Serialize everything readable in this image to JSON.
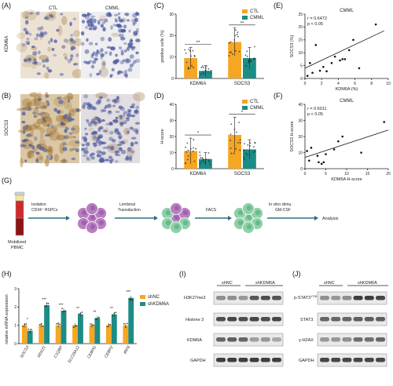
{
  "panels": {
    "A": "(A)",
    "B": "(B)",
    "C": "(C)",
    "D": "(D)",
    "E": "(E)",
    "F": "(F)",
    "G": "(G)",
    "H": "(H)",
    "I": "(I)",
    "J": "(J)"
  },
  "ihc": {
    "ctl": "CTL",
    "cmml": "CMML",
    "row_a": "KDM6A",
    "row_b": "SOCS3"
  },
  "colors": {
    "ctl": "#f5a623",
    "cmml": "#1c8c86",
    "arrow": "#2e6e7e",
    "purple": "#b87fc0",
    "green": "#8fd0a8"
  },
  "chart_data": [
    {
      "panel": "C",
      "type": "bar",
      "ylabel": "positive cells (%)",
      "ylim": [
        0,
        30
      ],
      "yticks": [
        "0",
        "10",
        "20",
        "30"
      ],
      "categories": [
        "KDM6A",
        "SOCS3"
      ],
      "series": [
        {
          "name": "CTL",
          "values": [
            9.5,
            17
          ],
          "errors": [
            5,
            6.5
          ]
        },
        {
          "name": "CMML",
          "values": [
            3.5,
            9.5
          ],
          "errors": [
            2.5,
            5
          ]
        }
      ],
      "significance": [
        "**",
        "**"
      ]
    },
    {
      "panel": "D",
      "type": "bar",
      "ylabel": "H-score",
      "ylim": [
        0,
        40
      ],
      "yticks": [
        "0",
        "10",
        "20",
        "30",
        "40"
      ],
      "categories": [
        "KDM6A",
        "SOCS3"
      ],
      "series": [
        {
          "name": "CTL",
          "values": [
            11,
            21
          ],
          "errors": [
            8,
            11
          ]
        },
        {
          "name": "CMML",
          "values": [
            6,
            12
          ],
          "errors": [
            4,
            6
          ]
        }
      ],
      "significance": [
        "*",
        "*"
      ]
    },
    {
      "panel": "E",
      "type": "scatter",
      "title": "CMML",
      "xlabel": "KDM6A (%)",
      "ylabel": "SOCS3 (%)",
      "xlim": [
        0,
        10
      ],
      "ylim": [
        0,
        25
      ],
      "xticks": [
        "0",
        "2",
        "4",
        "6",
        "8",
        "10"
      ],
      "yticks": [
        "0",
        "5",
        "10",
        "15",
        "20",
        "25"
      ],
      "annotation": [
        "r = 0.6472",
        "p < 0.05"
      ],
      "points": [
        [
          0.3,
          1
        ],
        [
          0.6,
          6
        ],
        [
          0.9,
          2.2
        ],
        [
          1.3,
          13
        ],
        [
          1.8,
          3
        ],
        [
          2.2,
          4.5
        ],
        [
          2.6,
          2.8
        ],
        [
          3.2,
          6
        ],
        [
          3.6,
          8.5
        ],
        [
          4.2,
          7
        ],
        [
          4.5,
          7.5
        ],
        [
          4.8,
          7.5
        ],
        [
          5.3,
          11
        ],
        [
          5.8,
          15
        ],
        [
          6.5,
          4
        ],
        [
          8.5,
          21
        ]
      ],
      "fit": [
        [
          0,
          4
        ],
        [
          9.5,
          18.5
        ]
      ]
    },
    {
      "panel": "F",
      "type": "scatter",
      "title": "CMML",
      "xlabel": "KDM6A H-score",
      "ylabel": "SOCS3 H-score",
      "xlim": [
        0,
        20
      ],
      "ylim": [
        0,
        40
      ],
      "xticks": [
        "0",
        "5",
        "10",
        "15",
        "20"
      ],
      "yticks": [
        "0",
        "10",
        "20",
        "30",
        "40"
      ],
      "annotation": [
        "r = 0.6011",
        "p < 0.05"
      ],
      "points": [
        [
          0.5,
          11
        ],
        [
          1,
          5
        ],
        [
          1.5,
          13
        ],
        [
          3,
          8
        ],
        [
          3.3,
          4
        ],
        [
          4,
          3
        ],
        [
          4.5,
          4
        ],
        [
          5,
          9
        ],
        [
          7,
          12
        ],
        [
          8,
          17
        ],
        [
          9,
          20
        ],
        [
          13.5,
          10
        ],
        [
          19,
          29
        ]
      ],
      "fit": [
        [
          0,
          7
        ],
        [
          20,
          24
        ]
      ]
    },
    {
      "panel": "H",
      "type": "bar",
      "ylabel": "relative mRNA expression",
      "ylim": [
        0,
        3
      ],
      "yticks": [
        "0",
        "1",
        "2",
        "3"
      ],
      "categories": [
        "SOCS3",
        "DDX21",
        "C1QBP",
        "SLC25A12",
        "CEBPG",
        "CEBPZ",
        "IRF8"
      ],
      "series": [
        {
          "name": "shNC",
          "values": [
            1,
            1,
            1,
            1,
            1,
            1,
            1
          ]
        },
        {
          "name": "shKDM6A",
          "values": [
            0.7,
            2.1,
            1.8,
            1.6,
            1.4,
            1.6,
            2.5
          ]
        }
      ],
      "significance": [
        "*",
        "***",
        "***",
        "**",
        "**",
        "**",
        "***"
      ]
    }
  ],
  "workflow": {
    "isolation": "Isolation",
    "cd34": "CD34⁺ HSPCs",
    "lentiviral": "Lentiviral",
    "transduction": "Transduction",
    "facs": "FACS",
    "invitro": "In vitro stimu.",
    "gmcsf": "GM-CSF",
    "analysis": "Analysis",
    "mobilized": "Mobilized",
    "pbmc": "PBMC"
  },
  "blot_i": {
    "groups": [
      "shNC",
      "shKDM6A"
    ],
    "rows": [
      "H3K27me3",
      "Histone 3",
      "KDM6A",
      "GAPDH"
    ]
  },
  "blot_j": {
    "groups": [
      "shNC",
      "shKDM6A"
    ],
    "rows": [
      "p-STAT3",
      "STAT3",
      "γ-H2AX",
      "GAPDH"
    ],
    "superscript": "Y705"
  }
}
